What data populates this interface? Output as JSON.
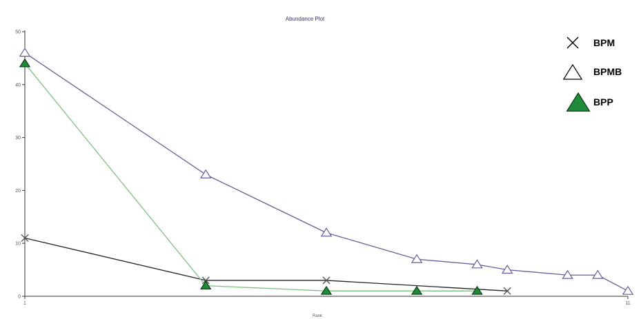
{
  "chart_data": {
    "type": "line",
    "title": "Abundance Plot",
    "xlabel": "Rank",
    "ylabel": "",
    "xlim": [
      1,
      11
    ],
    "ylim": [
      0,
      50
    ],
    "yticks": [
      0,
      10,
      20,
      30,
      40,
      50
    ],
    "xticks": [
      1,
      11
    ],
    "grid": false,
    "legend_placement": "top-right",
    "series": [
      {
        "name": "BPM",
        "marker": "x",
        "line_color": "#222222",
        "marker_color": "#555555",
        "x": [
          1,
          4,
          6,
          9
        ],
        "y": [
          11,
          3,
          3,
          1
        ]
      },
      {
        "name": "BPMB",
        "marker": "triangle-open",
        "line_color": "#6a5a9a",
        "marker_color": "#6a5a9a",
        "x": [
          1,
          4,
          6,
          7.5,
          8.5,
          9,
          10,
          10.5,
          11
        ],
        "y": [
          46,
          23,
          12,
          7,
          6,
          5,
          4,
          4,
          1
        ]
      },
      {
        "name": "BPP",
        "marker": "triangle-filled",
        "line_color": "#7fbf7f",
        "marker_color": "#1f8a3a",
        "x": [
          1,
          4,
          6,
          7.5,
          8.5
        ],
        "y": [
          44,
          2,
          1,
          1,
          1
        ]
      }
    ]
  }
}
